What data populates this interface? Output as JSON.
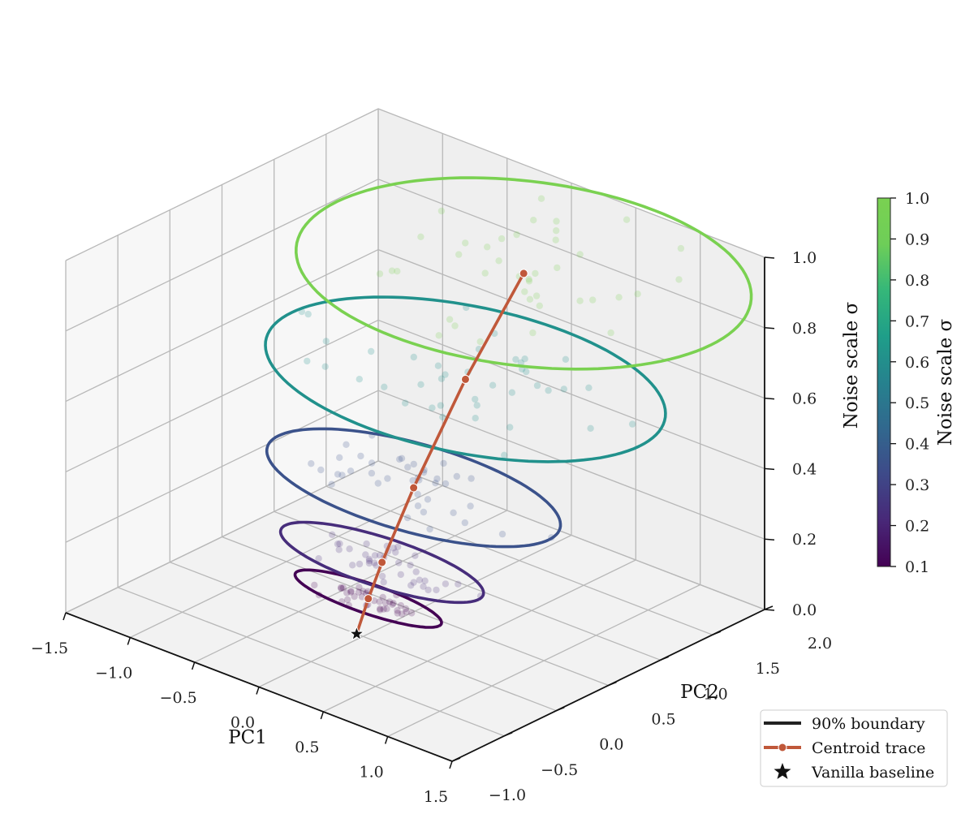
{
  "chart_data": {
    "type": "scatter",
    "projection": "3d",
    "xlabel": "PC1",
    "ylabel": "PC2",
    "zlabel": "Noise scale σ",
    "xlim": [
      -1.5,
      1.5
    ],
    "ylim": [
      -1.0,
      2.0
    ],
    "zlim": [
      0.0,
      1.0
    ],
    "xticks": [
      "−1.5",
      "−1.0",
      "−0.5",
      "0.0",
      "0.5",
      "1.0",
      "1.5"
    ],
    "yticks": [
      "−1.0",
      "−0.5",
      "0.0",
      "0.5",
      "1.0",
      "1.5",
      "2.0"
    ],
    "zticks": [
      "0.0",
      "0.2",
      "0.4",
      "0.6",
      "0.8",
      "1.0"
    ],
    "grid": true,
    "colormap": "viridis",
    "colorbar": {
      "label": "Noise scale σ",
      "range": [
        0.1,
        1.0
      ],
      "ticks": [
        "0.1",
        "0.2",
        "0.3",
        "0.4",
        "0.5",
        "0.6",
        "0.7",
        "0.8",
        "0.9",
        "1.0"
      ]
    },
    "levels": [
      {
        "sigma": 0.1,
        "centroid": [
          0.0,
          0.05
        ],
        "ellipse_radii": [
          0.55,
          0.18
        ],
        "color": "#440154"
      },
      {
        "sigma": 0.2,
        "centroid": [
          0.05,
          0.12
        ],
        "ellipse_radii": [
          0.75,
          0.3
        ],
        "color": "#472d7b"
      },
      {
        "sigma": 0.4,
        "centroid": [
          0.15,
          0.3
        ],
        "ellipse_radii": [
          1.05,
          0.55
        ],
        "color": "#3b528b"
      },
      {
        "sigma": 0.7,
        "centroid": [
          0.35,
          0.55
        ],
        "ellipse_radii": [
          1.35,
          0.95
        ],
        "color": "#21918c"
      },
      {
        "sigma": 1.0,
        "centroid": [
          0.6,
          0.8
        ],
        "ellipse_radii": [
          1.45,
          1.25
        ],
        "color": "#7ad151"
      }
    ],
    "baseline": {
      "x": -0.05,
      "y": 0.0,
      "z": 0.0
    },
    "centroid_trace_color": "#c0583a",
    "legend": {
      "location": "lower-right",
      "entries": [
        "90% boundary",
        "Centroid trace",
        "Vanilla baseline"
      ]
    }
  }
}
